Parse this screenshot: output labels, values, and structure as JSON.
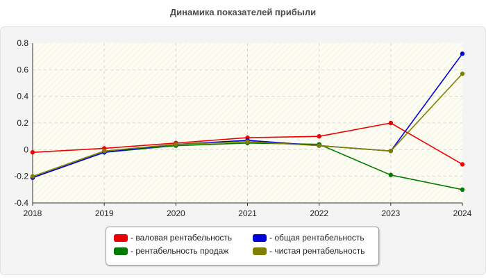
{
  "chart_data": {
    "type": "line",
    "title": "Динамика показателей прибыли",
    "x": [
      "2018",
      "2019",
      "2020",
      "2021",
      "2022",
      "2023",
      "2024"
    ],
    "ylim": [
      -0.4,
      0.8
    ],
    "yticks": [
      "-0.4",
      "-0.2",
      "0",
      "0.2",
      "0.4",
      "0.6",
      "0.8"
    ],
    "grid": true,
    "legend_position": "bottom",
    "series": [
      {
        "name": "- валовая рентабельность",
        "color": "#ee0000",
        "values": [
          -0.02,
          0.01,
          0.05,
          0.09,
          0.1,
          0.2,
          -0.11
        ]
      },
      {
        "name": "- рентабельность продаж",
        "color": "#007a00",
        "values": [
          -0.21,
          -0.02,
          0.03,
          0.05,
          0.04,
          -0.19,
          -0.3
        ]
      },
      {
        "name": "- общая рентабельность",
        "color": "#0000dd",
        "values": [
          -0.21,
          -0.02,
          0.04,
          0.07,
          0.03,
          -0.01,
          0.72
        ]
      },
      {
        "name": "- чистая рентабельность",
        "color": "#808000",
        "values": [
          -0.2,
          -0.01,
          0.04,
          0.06,
          0.03,
          -0.01,
          0.57
        ]
      }
    ]
  }
}
